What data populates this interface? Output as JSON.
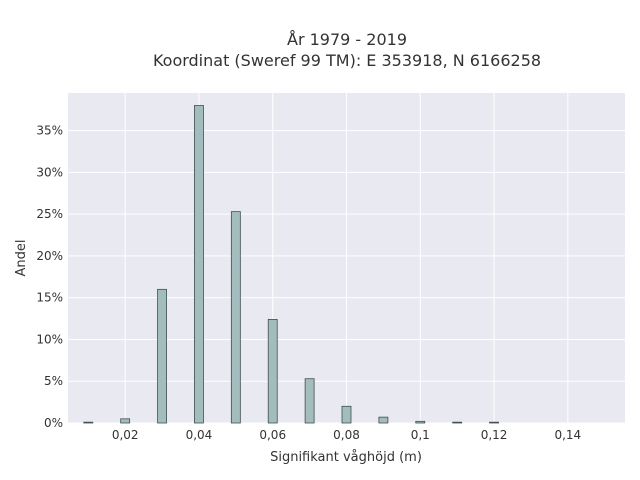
{
  "chart_data": {
    "type": "bar",
    "title_line1": "År 1979 - 2019",
    "title_line2": "Koordinat (Sweref 99 TM): E 353918, N 6166258",
    "xlabel": "Signifikant våghöjd (m)",
    "ylabel": "Andel",
    "x": [
      0.01,
      0.02,
      0.03,
      0.04,
      0.05,
      0.06,
      0.07,
      0.08,
      0.09,
      0.1,
      0.11,
      0.12
    ],
    "values": [
      0.1,
      0.5,
      16.0,
      38.0,
      25.3,
      12.4,
      5.3,
      2.0,
      0.7,
      0.2,
      0.1,
      0.1
    ],
    "xlim": [
      0.0045,
      0.1555
    ],
    "ylim": [
      0,
      39.5
    ],
    "x_ticks": [
      0.02,
      0.04,
      0.06,
      0.08,
      0.1,
      0.12,
      0.14
    ],
    "x_tick_labels": [
      "0,02",
      "0,04",
      "0,06",
      "0,08",
      "0,1",
      "0,12",
      "0,14"
    ],
    "y_ticks": [
      0,
      5,
      10,
      15,
      20,
      25,
      30,
      35
    ],
    "y_tick_labels": [
      "0%",
      "5%",
      "10%",
      "15%",
      "20%",
      "25%",
      "30%",
      "35%"
    ],
    "grid": true,
    "bar_color": "#a3bdbf",
    "bar_edge_color": "#3f4f50",
    "plot_bg": "#e9e9f1"
  }
}
